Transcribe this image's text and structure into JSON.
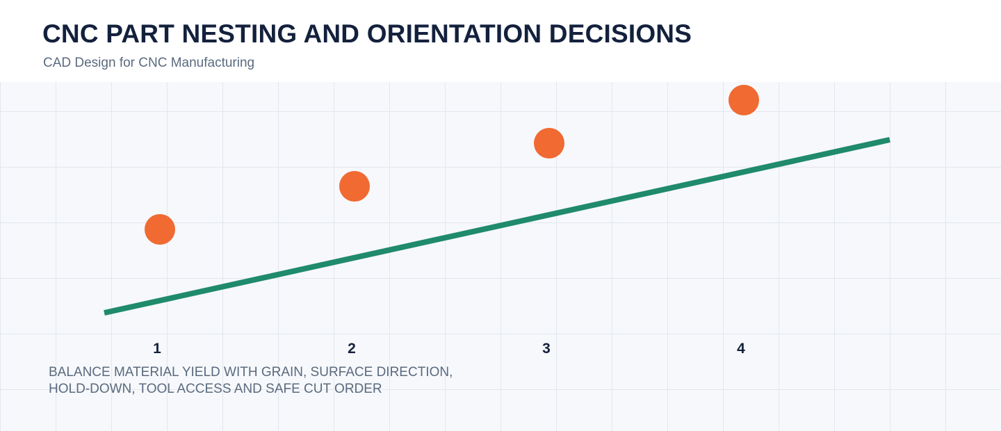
{
  "header": {
    "title": "CNC PART NESTING AND ORIENTATION DECISIONS",
    "subtitle": "CAD Design for CNC Manufacturing"
  },
  "steps": [
    {
      "label": "1",
      "level": 1
    },
    {
      "label": "2",
      "level": 2
    },
    {
      "label": "3",
      "level": 3
    },
    {
      "label": "4",
      "level": 4
    }
  ],
  "trend": {
    "start_level": 0,
    "end_level": 4
  },
  "caption": {
    "line1": "BALANCE MATERIAL YIELD WITH GRAIN, SURFACE DIRECTION,",
    "line2": "HOLD-DOWN, TOOL ACCESS AND SAFE CUT ORDER"
  },
  "colors": {
    "title": "#14213d",
    "subtitle": "#5a6a7e",
    "marker": "#f06a32",
    "trend_line": "#1f8a6c",
    "grid": "#e3e7ee",
    "canvas": "#f6f8fb"
  }
}
